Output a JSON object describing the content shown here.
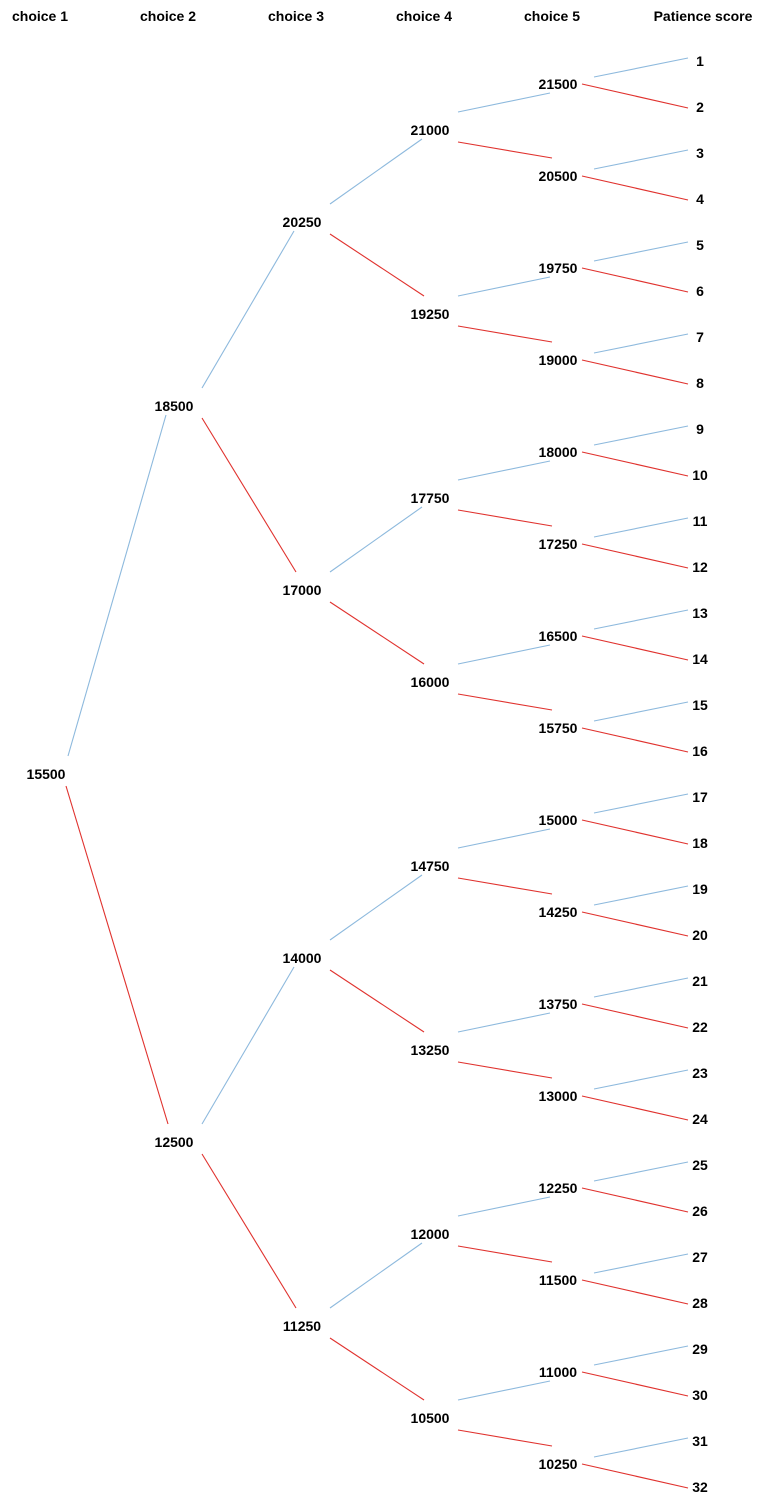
{
  "headers": [
    "choice 1",
    "choice 2",
    "choice 3",
    "choice 4",
    "choice 5",
    "Patience score"
  ],
  "colors": {
    "upper_branch": "#8db9dd",
    "lower_branch": "#e0322e",
    "text": "#000000"
  },
  "tree": {
    "choice1": [
      "15500"
    ],
    "choice2": [
      "18500",
      "12500"
    ],
    "choice3": [
      "20250",
      "17000",
      "14000",
      "11250"
    ],
    "choice4": [
      "21000",
      "19250",
      "17750",
      "16000",
      "14750",
      "13250",
      "12000",
      "10500"
    ],
    "choice5": [
      "21500",
      "20500",
      "19750",
      "19000",
      "18000",
      "17250",
      "16500",
      "15750",
      "15000",
      "14250",
      "13750",
      "13000",
      "12250",
      "11500",
      "11000",
      "10250"
    ],
    "patience_scores": [
      "1",
      "2",
      "3",
      "4",
      "5",
      "6",
      "7",
      "8",
      "9",
      "10",
      "11",
      "12",
      "13",
      "14",
      "15",
      "16",
      "17",
      "18",
      "19",
      "20",
      "21",
      "22",
      "23",
      "24",
      "25",
      "26",
      "27",
      "28",
      "29",
      "30",
      "31",
      "32"
    ]
  }
}
